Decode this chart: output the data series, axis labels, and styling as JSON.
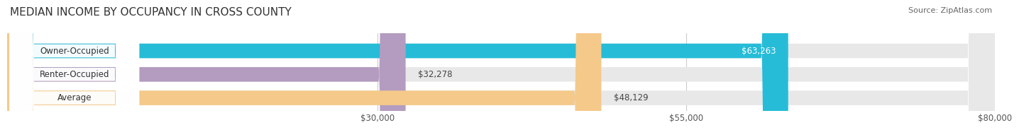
{
  "title": "MEDIAN INCOME BY OCCUPANCY IN CROSS COUNTY",
  "source": "Source: ZipAtlas.com",
  "categories": [
    "Owner-Occupied",
    "Renter-Occupied",
    "Average"
  ],
  "values": [
    63263,
    32278,
    48129
  ],
  "bar_colors": [
    "#26bcd7",
    "#b39cc0",
    "#f5c98a"
  ],
  "label_colors": [
    "white",
    "black",
    "black"
  ],
  "value_labels": [
    "$63,263",
    "$32,278",
    "$48,129"
  ],
  "xlim": [
    0,
    80000
  ],
  "xticks": [
    30000,
    55000,
    80000
  ],
  "xtick_labels": [
    "$30,000",
    "$55,000",
    "$80,000"
  ],
  "background_color": "#ffffff",
  "bar_bg_color": "#e8e8e8",
  "title_fontsize": 11,
  "label_fontsize": 8.5,
  "value_fontsize": 8.5,
  "source_fontsize": 8
}
